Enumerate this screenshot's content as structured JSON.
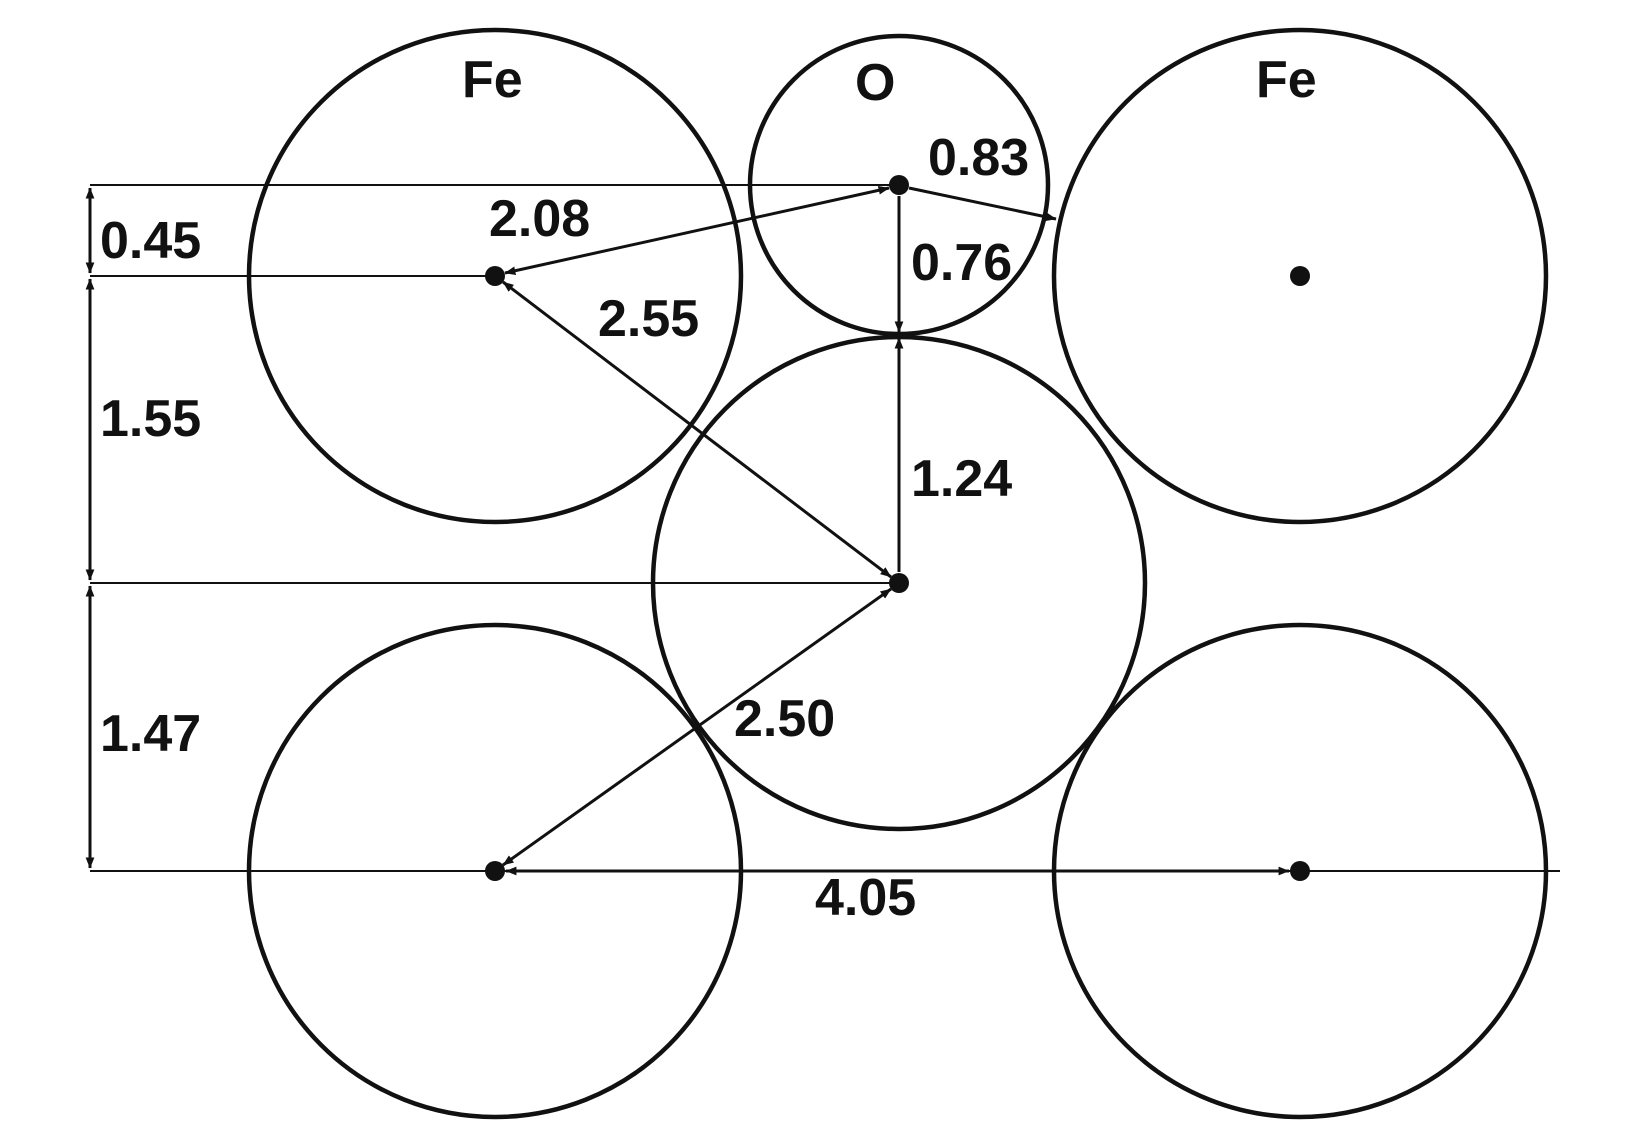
{
  "atoms": {
    "fe_top_left": "Fe",
    "o_top": "O",
    "fe_top_right": "Fe"
  },
  "distances": {
    "vertical_offset_small": "0.45",
    "vertical_offset_upper": "1.55",
    "vertical_offset_lower": "1.47",
    "fe_to_o_top": "2.08",
    "o_top_to_fe_right_edge": "0.83",
    "o_top_radius": "0.76",
    "fe_to_center": "2.55",
    "center_to_o_top_edge": "1.24",
    "center_to_fe_bottom_left": "2.50",
    "fe_bottom_spacing": "4.05"
  },
  "colors": {
    "ink": "#111111",
    "background": "#ffffff"
  }
}
